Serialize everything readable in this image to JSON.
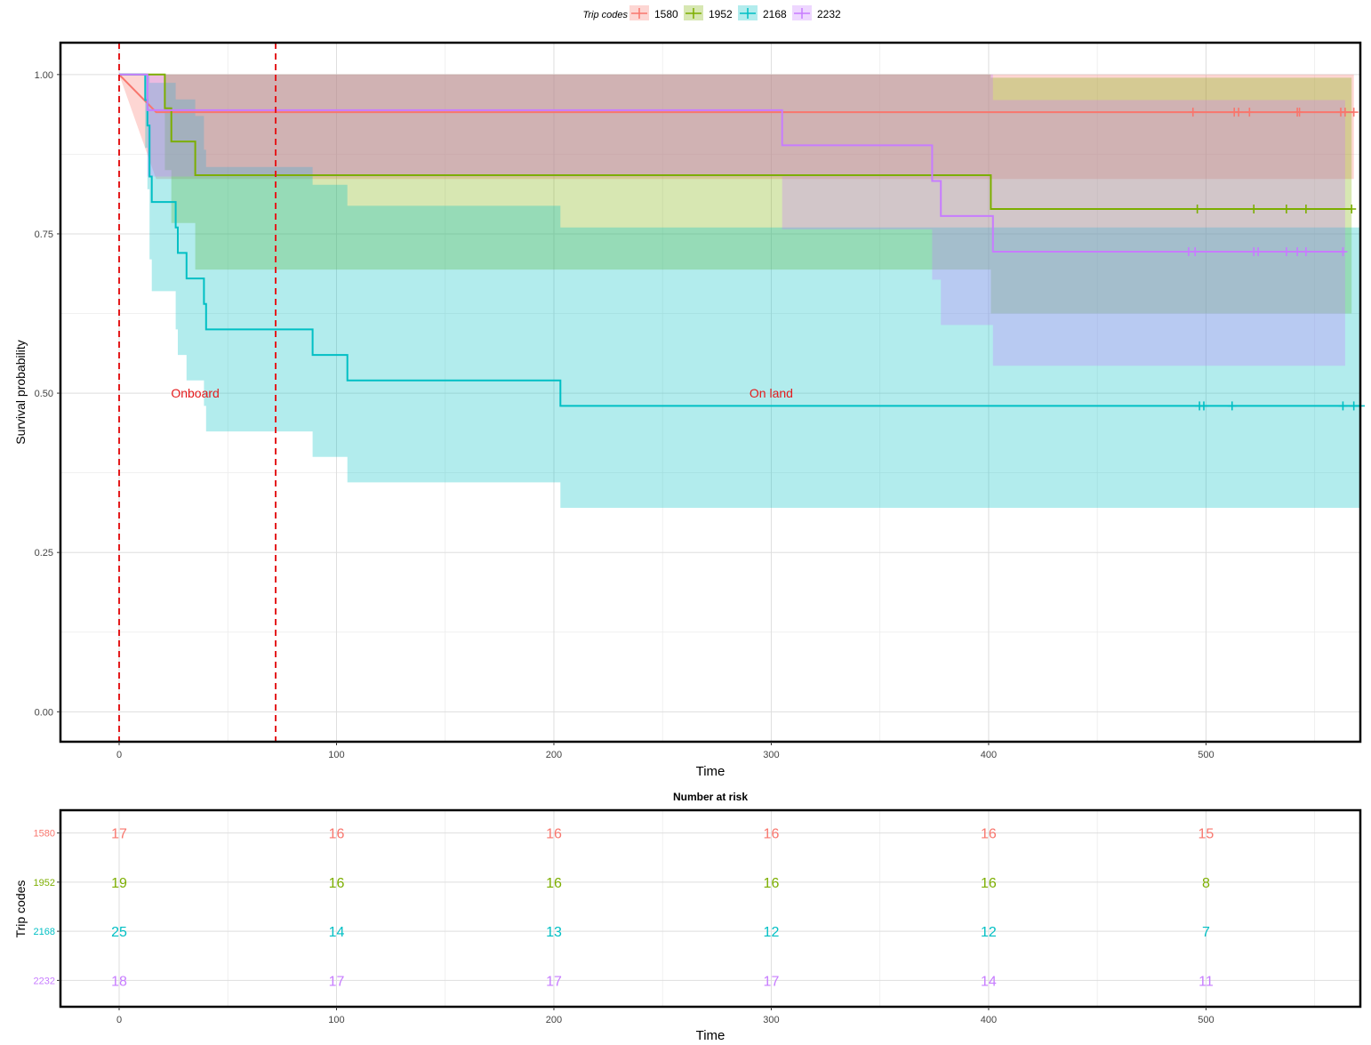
{
  "legend": {
    "title": "Trip codes",
    "items": [
      {
        "name": "1580",
        "color": "#F8766D"
      },
      {
        "name": "1952",
        "color": "#7CAE00"
      },
      {
        "name": "2168",
        "color": "#00BFC4"
      },
      {
        "name": "2232",
        "color": "#C77CFF"
      }
    ]
  },
  "chart_data": [
    {
      "type": "line",
      "subtype": "kaplan-meier step curves with confidence bands",
      "xlabel": "Time",
      "ylabel": "Survival probability",
      "xlim": [
        -27,
        571
      ],
      "ylim": [
        -0.047,
        1.05
      ],
      "xticks": [
        0,
        100,
        200,
        300,
        400,
        500
      ],
      "yticks": [
        0,
        0.25,
        0.5,
        0.75,
        1.0
      ],
      "ytick_labels": [
        "0.00",
        "0.25",
        "0.50",
        "0.75",
        "1.00"
      ],
      "grid": true,
      "legend_position": "top",
      "vlines": [
        {
          "x": 0,
          "color": "#E41A1C",
          "style": "dashed"
        },
        {
          "x": 72,
          "color": "#E41A1C",
          "style": "dashed"
        }
      ],
      "annotations": [
        {
          "text": "Onboard",
          "x": 35,
          "y": 0.5,
          "color": "#E41A1C"
        },
        {
          "text": "On land",
          "x": 300,
          "y": 0.5,
          "color": "#E41A1C"
        }
      ],
      "series": [
        {
          "name": "1580",
          "color": "#F8766D",
          "steps": [
            [
              0,
              1.0
            ],
            [
              17,
              0.941
            ],
            [
              568,
              0.941
            ]
          ],
          "upper": [
            [
              0,
              1.0
            ],
            [
              568,
              1.0
            ]
          ],
          "lower": [
            [
              0,
              1.0
            ],
            [
              17,
              0.836
            ],
            [
              568,
              0.836
            ]
          ],
          "censor_x": [
            494,
            513,
            515,
            520,
            542,
            543,
            562,
            564,
            568
          ]
        },
        {
          "name": "1952",
          "color": "#7CAE00",
          "steps": [
            [
              0,
              1.0
            ],
            [
              21,
              1.0
            ],
            [
              21,
              0.947
            ],
            [
              24,
              0.947
            ],
            [
              24,
              0.895
            ],
            [
              35,
              0.895
            ],
            [
              35,
              0.842
            ],
            [
              401,
              0.842
            ],
            [
              401,
              0.789
            ],
            [
              567,
              0.789
            ]
          ],
          "upper": [
            [
              0,
              1.0
            ],
            [
              401,
              1.0
            ],
            [
              401,
              0.995
            ],
            [
              567,
              0.995
            ]
          ],
          "lower": [
            [
              0,
              1.0
            ],
            [
              21,
              1.0
            ],
            [
              21,
              0.85
            ],
            [
              24,
              0.85
            ],
            [
              24,
              0.767
            ],
            [
              35,
              0.767
            ],
            [
              35,
              0.694
            ],
            [
              401,
              0.694
            ],
            [
              401,
              0.625
            ],
            [
              567,
              0.625
            ]
          ],
          "censor_x": [
            496,
            522,
            537,
            546,
            567
          ]
        },
        {
          "name": "2168",
          "color": "#00BFC4",
          "steps": [
            [
              0,
              1.0
            ],
            [
              12,
              1.0
            ],
            [
              12,
              0.96
            ],
            [
              13,
              0.96
            ],
            [
              13,
              0.92
            ],
            [
              14,
              0.92
            ],
            [
              14,
              0.84
            ],
            [
              15,
              0.84
            ],
            [
              15,
              0.8
            ],
            [
              26,
              0.8
            ],
            [
              26,
              0.76
            ],
            [
              27,
              0.76
            ],
            [
              27,
              0.72
            ],
            [
              31,
              0.72
            ],
            [
              31,
              0.68
            ],
            [
              39,
              0.68
            ],
            [
              39,
              0.64
            ],
            [
              40,
              0.64
            ],
            [
              40,
              0.6
            ],
            [
              89,
              0.6
            ],
            [
              89,
              0.56
            ],
            [
              105,
              0.56
            ],
            [
              105,
              0.52
            ],
            [
              203,
              0.52
            ],
            [
              203,
              0.48
            ],
            [
              571,
              0.48
            ]
          ],
          "upper": [
            [
              0,
              1.0
            ],
            [
              14,
              1.0
            ],
            [
              14,
              0.987
            ],
            [
              26,
              0.987
            ],
            [
              26,
              0.961
            ],
            [
              35,
              0.961
            ],
            [
              35,
              0.935
            ],
            [
              39,
              0.935
            ],
            [
              39,
              0.882
            ],
            [
              40,
              0.882
            ],
            [
              40,
              0.855
            ],
            [
              89,
              0.855
            ],
            [
              89,
              0.827
            ],
            [
              105,
              0.827
            ],
            [
              105,
              0.794
            ],
            [
              203,
              0.794
            ],
            [
              203,
              0.76
            ],
            [
              571,
              0.76
            ]
          ],
          "lower": [
            [
              0,
              1.0
            ],
            [
              12,
              1.0
            ],
            [
              12,
              0.885
            ],
            [
              13,
              0.885
            ],
            [
              13,
              0.82
            ],
            [
              14,
              0.82
            ],
            [
              14,
              0.71
            ],
            [
              15,
              0.71
            ],
            [
              15,
              0.66
            ],
            [
              26,
              0.66
            ],
            [
              26,
              0.6
            ],
            [
              27,
              0.6
            ],
            [
              27,
              0.56
            ],
            [
              31,
              0.56
            ],
            [
              31,
              0.52
            ],
            [
              39,
              0.52
            ],
            [
              39,
              0.48
            ],
            [
              40,
              0.48
            ],
            [
              40,
              0.44
            ],
            [
              89,
              0.44
            ],
            [
              89,
              0.4
            ],
            [
              105,
              0.4
            ],
            [
              105,
              0.36
            ],
            [
              203,
              0.36
            ],
            [
              203,
              0.32
            ],
            [
              571,
              0.32
            ]
          ],
          "censor_x": [
            497,
            499,
            512,
            563,
            568,
            571
          ]
        },
        {
          "name": "2232",
          "color": "#C77CFF",
          "steps": [
            [
              0,
              1.0
            ],
            [
              13,
              1.0
            ],
            [
              13,
              0.944
            ],
            [
              305,
              0.944
            ],
            [
              305,
              0.889
            ],
            [
              374,
              0.889
            ],
            [
              374,
              0.833
            ],
            [
              378,
              0.833
            ],
            [
              378,
              0.778
            ],
            [
              402,
              0.778
            ],
            [
              402,
              0.722
            ],
            [
              564,
              0.722
            ]
          ],
          "upper": [
            [
              0,
              1.0
            ],
            [
              402,
              1.0
            ],
            [
              402,
              0.96
            ],
            [
              564,
              0.96
            ]
          ],
          "lower": [
            [
              0,
              1.0
            ],
            [
              13,
              1.0
            ],
            [
              13,
              0.84
            ],
            [
              305,
              0.84
            ],
            [
              305,
              0.757
            ],
            [
              374,
              0.757
            ],
            [
              374,
              0.678
            ],
            [
              378,
              0.678
            ],
            [
              378,
              0.607
            ],
            [
              402,
              0.607
            ],
            [
              402,
              0.543
            ],
            [
              564,
              0.543
            ]
          ],
          "censor_x": [
            492,
            495,
            522,
            524,
            537,
            542,
            546,
            563
          ]
        }
      ]
    },
    {
      "type": "table",
      "title": "Number at risk",
      "xlabel": "Time",
      "ylabel": "Trip codes",
      "xlim": [
        -27,
        571
      ],
      "xticks": [
        0,
        100,
        200,
        300,
        400,
        500
      ],
      "grid": true,
      "rows": [
        {
          "name": "1580",
          "color": "#F8766D",
          "values": [
            17,
            16,
            16,
            16,
            16,
            15
          ]
        },
        {
          "name": "1952",
          "color": "#7CAE00",
          "values": [
            19,
            16,
            16,
            16,
            16,
            8
          ]
        },
        {
          "name": "2168",
          "color": "#00BFC4",
          "values": [
            25,
            14,
            13,
            12,
            12,
            7
          ]
        },
        {
          "name": "2232",
          "color": "#C77CFF",
          "values": [
            18,
            17,
            17,
            17,
            14,
            11
          ]
        }
      ]
    }
  ]
}
